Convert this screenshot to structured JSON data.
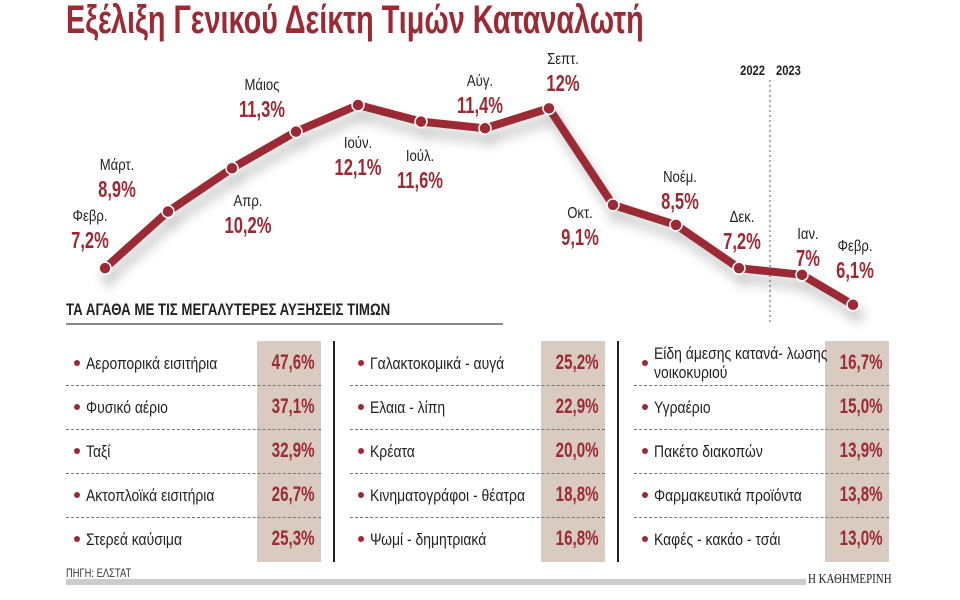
{
  "title": "Εξέλιξη Γενικού Δείκτη Τιμών Καταναλωτή",
  "colors": {
    "accent": "#9b2a35",
    "value_box": "#d9cbc0",
    "text": "#222222"
  },
  "chart_data": {
    "type": "line",
    "title": "Εξέλιξη Γενικού Δείκτη Τιμών Καταναλωτή",
    "categories": [
      "Φεβρ.",
      "Μάρτ.",
      "Απρ.",
      "Μάιος",
      "Ιούν.",
      "Ιούλ.",
      "Αύγ.",
      "Σεπτ.",
      "Οκτ.",
      "Νοέμ.",
      "Δεκ.",
      "Ιαν.",
      "Φεβρ."
    ],
    "values": [
      7.2,
      8.9,
      10.2,
      11.3,
      12.1,
      11.6,
      11.4,
      12,
      9.1,
      8.5,
      7.2,
      7,
      6.1
    ],
    "value_labels": [
      "7,2%",
      "8,9%",
      "10,2%",
      "11,3%",
      "12,1%",
      "11,6%",
      "11,4%",
      "12%",
      "9,1%",
      "8,5%",
      "7,2%",
      "7%",
      "6,1%"
    ],
    "year_divider": {
      "before": "2022",
      "after": "2023"
    },
    "grid": false,
    "xlabel": "",
    "ylabel": ""
  },
  "table": {
    "heading": "ΤΑ ΑΓΑΘΑ ΜΕ ΤΙΣ ΜΕΓΑΛΥΤΕΡΕΣ ΑΥΞΗΣΕΙΣ ΤΙΜΩΝ",
    "columns": [
      [
        {
          "name": "Αεροπορικά εισιτήρια",
          "value": "47,6%"
        },
        {
          "name": "Φυσικό αέριο",
          "value": "37,1%"
        },
        {
          "name": "Ταξί",
          "value": "32,9%"
        },
        {
          "name": "Ακτοπλοϊκά εισιτήρια",
          "value": "26,7%"
        },
        {
          "name": "Στερεά καύσιμα",
          "value": "25,3%"
        }
      ],
      [
        {
          "name": "Γαλακτοκομικά - αυγά",
          "value": "25,2%"
        },
        {
          "name": "Ελαια - λίπη",
          "value": "22,9%"
        },
        {
          "name": "Κρέατα",
          "value": "20,0%"
        },
        {
          "name": "Κινηματογράφοι - θέατρα",
          "value": "18,8%"
        },
        {
          "name": "Ψωμί - δημητριακά",
          "value": "16,8%"
        }
      ],
      [
        {
          "name": "Είδη άμεσης κατανά- λωσης νοικοκυριού",
          "value": "16,7%"
        },
        {
          "name": "Υγραέριο",
          "value": "15,0%"
        },
        {
          "name": "Πακέτο διακοπών",
          "value": "13,9%"
        },
        {
          "name": "Φαρμακευτικά προϊόντα",
          "value": "13,8%"
        },
        {
          "name": "Καφές - κακάο - τσάι",
          "value": "13,0%"
        }
      ]
    ]
  },
  "source": "ΠΗΓΗ: ΕΛΣΤΑΤ",
  "brand": "Η ΚΑΘΗΜΕΡΙΝΗ"
}
